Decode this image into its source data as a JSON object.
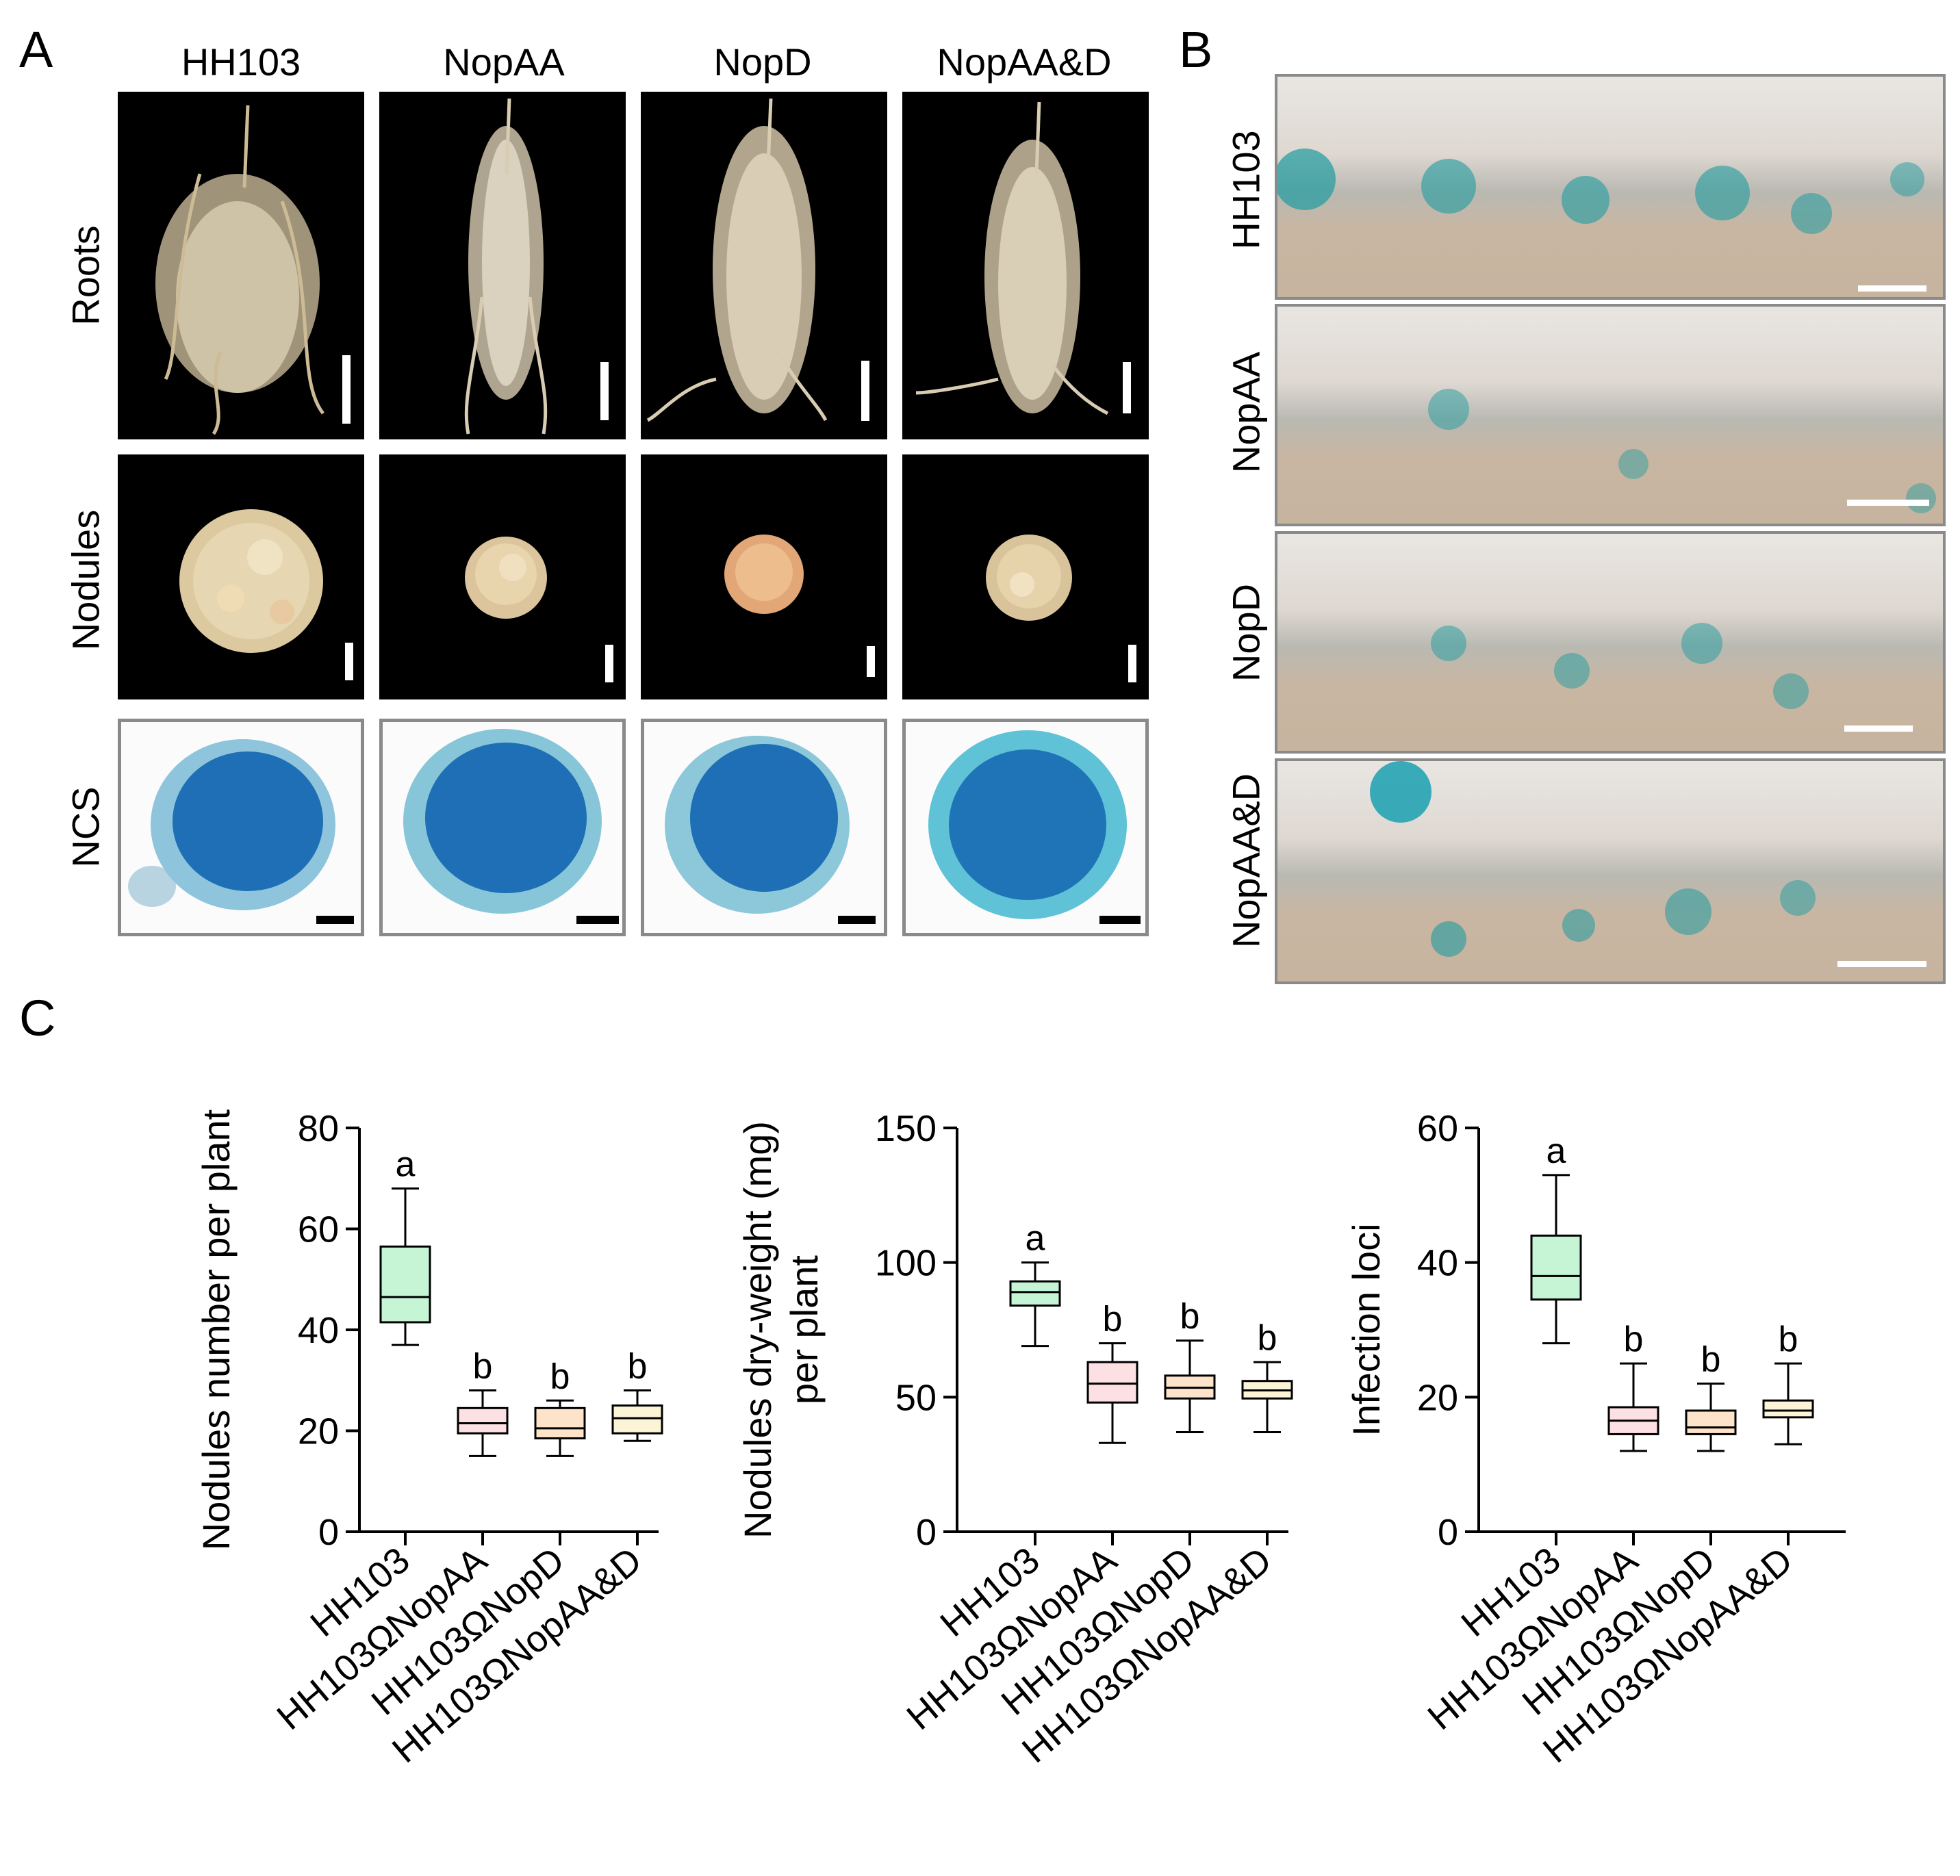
{
  "panel_a": {
    "letter": "A",
    "columns": [
      "HH103",
      "NopAA",
      "NopD",
      "NopAA&D"
    ],
    "rows": [
      "Roots",
      "Nodules",
      "NCS"
    ]
  },
  "panel_b": {
    "letter": "B",
    "rows": [
      "HH103",
      "NopAA",
      "NopD",
      "NopAA&D"
    ]
  },
  "panel_c": {
    "letter": "C"
  },
  "colors": {
    "HH103": "#c6f5d6",
    "NopAA": "#fde0e3",
    "NopD": "#fde3c9",
    "NopAA&D": "#fcf4d6"
  },
  "chart_data": [
    {
      "type": "box",
      "ylabel": "Nodules number per plant",
      "ylim": [
        0,
        80
      ],
      "yticks": [
        "0",
        "20",
        "40",
        "60",
        "80"
      ],
      "categories": [
        "HH103",
        "HH103ΩNopAA",
        "HH103ΩNopD",
        "HH103ΩNopAA&D"
      ],
      "boxes": [
        {
          "min": 37,
          "q1": 41.5,
          "median": 46.5,
          "q3": 56.5,
          "max": 68,
          "letter": "a"
        },
        {
          "min": 15,
          "q1": 19.5,
          "median": 21.5,
          "q3": 24.5,
          "max": 28,
          "letter": "b"
        },
        {
          "min": 15,
          "q1": 18.5,
          "median": 20.5,
          "q3": 24.5,
          "max": 26,
          "letter": "b"
        },
        {
          "min": 18,
          "q1": 19.5,
          "median": 22.5,
          "q3": 25,
          "max": 28,
          "letter": "b"
        }
      ]
    },
    {
      "type": "box",
      "ylabel": "Nodules dry-weight (mg)\nper plant",
      "ylim": [
        0,
        150
      ],
      "yticks": [
        "0",
        "50",
        "100",
        "150"
      ],
      "categories": [
        "HH103",
        "HH103ΩNopAA",
        "HH103ΩNopD",
        "HH103ΩNopAA&D"
      ],
      "boxes": [
        {
          "min": 69,
          "q1": 84,
          "median": 89,
          "q3": 93,
          "max": 100,
          "letter": "a"
        },
        {
          "min": 33,
          "q1": 48,
          "median": 55,
          "q3": 63,
          "max": 70,
          "letter": "b"
        },
        {
          "min": 37,
          "q1": 49.5,
          "median": 53.5,
          "q3": 58,
          "max": 71,
          "letter": "b"
        },
        {
          "min": 37,
          "q1": 49.5,
          "median": 52.5,
          "q3": 56,
          "max": 63,
          "letter": "b"
        }
      ]
    },
    {
      "type": "box",
      "ylabel": "Infection loci",
      "ylim": [
        0,
        60
      ],
      "yticks": [
        "0",
        "20",
        "40",
        "60"
      ],
      "categories": [
        "HH103",
        "HH103ΩNopAA",
        "HH103ΩNopD",
        "HH103ΩNopAA&D"
      ],
      "boxes": [
        {
          "min": 28,
          "q1": 34.5,
          "median": 38,
          "q3": 44,
          "max": 53,
          "letter": "a"
        },
        {
          "min": 12,
          "q1": 14.5,
          "median": 16.5,
          "q3": 18.5,
          "max": 25,
          "letter": "b"
        },
        {
          "min": 12,
          "q1": 14.5,
          "median": 15.5,
          "q3": 18,
          "max": 22,
          "letter": "b"
        },
        {
          "min": 13,
          "q1": 17,
          "median": 18,
          "q3": 19.5,
          "max": 25,
          "letter": "b"
        }
      ]
    }
  ]
}
